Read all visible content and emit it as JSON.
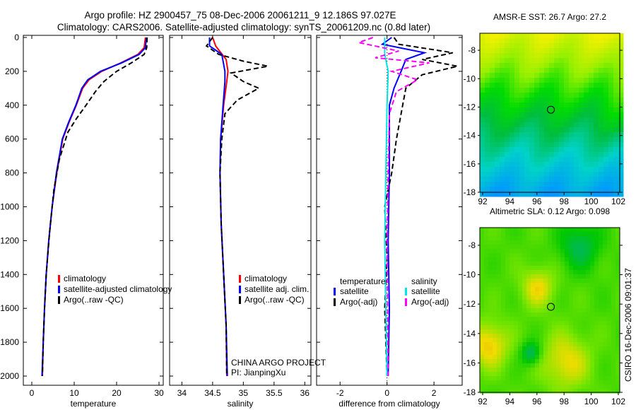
{
  "title_line1": "Argo profile: HZ 2900457_75 08-Dec-2006 20061211_9 12.186S 97.027E",
  "title_line2": "Climatology: CARS2006. Satellite-adjusted climatology: synTS_20061209.nc (0.8d later)",
  "side_label": "CSIRO 16-Dec-2006 09:01:37",
  "project_label": "CHINA ARGO PROJECT",
  "pi_label": "PI: JianpingXu",
  "colors": {
    "red": "#ff0000",
    "blue": "#0000ff",
    "black": "#000000",
    "cyan": "#00e5e5",
    "magenta": "#ff00ff"
  },
  "chart_data": [
    {
      "type": "line",
      "xlabel": "temperature",
      "ylabel": "",
      "xlim": [
        -2,
        31
      ],
      "ylim": [
        2050,
        0
      ],
      "xticks": [
        "0",
        "10",
        "20",
        "30"
      ],
      "xtickvals": [
        0,
        10,
        20,
        30
      ],
      "yticks": [
        "0",
        "200",
        "400",
        "600",
        "800",
        "1000",
        "1200",
        "1400",
        "1600",
        "1800",
        "2000"
      ],
      "legend": [
        "climatology",
        "satellite-adjusted climatology",
        "Argo(..raw -QC)"
      ],
      "series": [
        {
          "name": "climatology",
          "color": "red",
          "dash": false,
          "points": [
            [
              26.8,
              0
            ],
            [
              26.5,
              60
            ],
            [
              25,
              100
            ],
            [
              21,
              150
            ],
            [
              16.5,
              200
            ],
            [
              13.5,
              250
            ],
            [
              12,
              300
            ],
            [
              10.5,
              400
            ],
            [
              8.8,
              500
            ],
            [
              7.3,
              600
            ],
            [
              5.9,
              800
            ],
            [
              4.8,
              1000
            ],
            [
              4,
              1200
            ],
            [
              3.4,
              1400
            ],
            [
              3,
              1600
            ],
            [
              2.7,
              1800
            ],
            [
              2.5,
              2000
            ]
          ]
        },
        {
          "name": "satellite-adjusted climatology",
          "color": "blue",
          "dash": false,
          "points": [
            [
              27,
              0
            ],
            [
              26.8,
              60
            ],
            [
              25.3,
              100
            ],
            [
              21.2,
              150
            ],
            [
              16.2,
              200
            ],
            [
              13.2,
              250
            ],
            [
              11.8,
              300
            ],
            [
              10.4,
              400
            ],
            [
              8.7,
              500
            ],
            [
              7.2,
              600
            ],
            [
              5.8,
              800
            ],
            [
              4.8,
              1000
            ],
            [
              4,
              1200
            ],
            [
              3.4,
              1400
            ],
            [
              3,
              1600
            ],
            [
              2.7,
              1800
            ],
            [
              2.4,
              2000
            ]
          ]
        },
        {
          "name": "Argo(..raw -QC)",
          "color": "black",
          "dash": true,
          "points": [
            [
              27.2,
              0
            ],
            [
              27.1,
              60
            ],
            [
              26.5,
              100
            ],
            [
              23.5,
              150
            ],
            [
              20,
              200
            ],
            [
              17,
              260
            ],
            [
              15,
              320
            ],
            [
              12.8,
              400
            ],
            [
              10.5,
              480
            ],
            [
              8.5,
              560
            ],
            [
              6.5,
              720
            ],
            [
              5.2,
              900
            ],
            [
              4.2,
              1150
            ],
            [
              3.4,
              1400
            ],
            [
              3,
              1600
            ],
            [
              2.7,
              1800
            ],
            [
              2.5,
              2000
            ]
          ]
        }
      ]
    },
    {
      "type": "line",
      "xlabel": "salinity",
      "ylabel": "",
      "xlim": [
        33.8,
        36.1
      ],
      "ylim": [
        2050,
        0
      ],
      "xticks": [
        "34",
        "34.5",
        "35",
        "35.5",
        "36"
      ],
      "xtickvals": [
        34,
        34.5,
        35,
        35.5,
        36
      ],
      "legend": [
        "climatology",
        "satellite adj. clim.",
        "Argo(..raw -QC)"
      ],
      "series": [
        {
          "name": "climatology",
          "color": "red",
          "dash": false,
          "points": [
            [
              34.5,
              0
            ],
            [
              34.55,
              50
            ],
            [
              34.72,
              130
            ],
            [
              34.75,
              200
            ],
            [
              34.73,
              260
            ],
            [
              34.68,
              400
            ],
            [
              34.63,
              600
            ],
            [
              34.62,
              800
            ],
            [
              34.64,
              1100
            ],
            [
              34.68,
              1400
            ],
            [
              34.72,
              1700
            ],
            [
              34.73,
              2000
            ]
          ]
        },
        {
          "name": "satellite adj. clim.",
          "color": "blue",
          "dash": false,
          "points": [
            [
              34.45,
              0
            ],
            [
              34.45,
              50
            ],
            [
              34.65,
              100
            ],
            [
              34.7,
              200
            ],
            [
              34.7,
              260
            ],
            [
              34.67,
              400
            ],
            [
              34.63,
              600
            ],
            [
              34.62,
              800
            ],
            [
              34.64,
              1100
            ],
            [
              34.68,
              1400
            ],
            [
              34.72,
              1700
            ],
            [
              34.74,
              2000
            ]
          ]
        },
        {
          "name": "Argo(..raw -QC)",
          "color": "black",
          "dash": true,
          "points": [
            [
              34.5,
              0
            ],
            [
              34.4,
              50
            ],
            [
              34.6,
              100
            ],
            [
              35.0,
              140
            ],
            [
              35.4,
              170
            ],
            [
              34.8,
              210
            ],
            [
              35.0,
              260
            ],
            [
              35.25,
              300
            ],
            [
              34.9,
              370
            ],
            [
              34.7,
              450
            ],
            [
              34.65,
              600
            ],
            [
              34.62,
              800
            ],
            [
              34.64,
              1100
            ],
            [
              34.68,
              1400
            ],
            [
              34.72,
              1700
            ],
            [
              34.73,
              2000
            ]
          ]
        }
      ]
    },
    {
      "type": "line",
      "xlabel": "difference from climatology",
      "ylabel": "",
      "xlim": [
        -3,
        3.2
      ],
      "ylim": [
        2050,
        0
      ],
      "xticks": [
        "-2",
        "0",
        "2"
      ],
      "xtickvals": [
        -2,
        0,
        2
      ],
      "legend_temp_title": "temperature",
      "legend_sal_title": "salinity",
      "legend": [
        "satellite",
        "Argo(-adj)",
        "satellite",
        "Argo(-adj)"
      ],
      "series": [
        {
          "name": "temperature satellite",
          "color": "blue",
          "dash": false,
          "points": [
            [
              0.2,
              0
            ],
            [
              -0.2,
              40
            ],
            [
              1.6,
              90
            ],
            [
              0.8,
              130
            ],
            [
              0.6,
              200
            ],
            [
              0.3,
              300
            ],
            [
              0.1,
              400
            ],
            [
              0.1,
              800
            ],
            [
              0.05,
              1200
            ],
            [
              0.1,
              1600
            ],
            [
              0.05,
              2000
            ]
          ]
        },
        {
          "name": "temperature Argo(-adj)",
          "color": "black",
          "dash": true,
          "points": [
            [
              0.3,
              0
            ],
            [
              0.5,
              40
            ],
            [
              2.8,
              90
            ],
            [
              1.5,
              130
            ],
            [
              3.0,
              170
            ],
            [
              1.5,
              220
            ],
            [
              0.8,
              300
            ],
            [
              0.6,
              450
            ],
            [
              0.4,
              600
            ],
            [
              0.2,
              800
            ],
            [
              -0.1,
              1000
            ],
            [
              0,
              1300
            ],
            [
              -0.1,
              1600
            ],
            [
              0,
              2000
            ]
          ]
        },
        {
          "name": "salinity satellite",
          "color": "cyan",
          "dash": false,
          "points": [
            [
              -0.1,
              0
            ],
            [
              -0.1,
              100
            ],
            [
              0.05,
              200
            ],
            [
              0,
              400
            ],
            [
              -0.05,
              800
            ],
            [
              -0.1,
              1200
            ],
            [
              -0.05,
              1600
            ],
            [
              0,
              2000
            ]
          ]
        },
        {
          "name": "salinity Argo(-adj)",
          "color": "magenta",
          "dash": true,
          "points": [
            [
              -0.6,
              0
            ],
            [
              -1.2,
              30
            ],
            [
              0.5,
              80
            ],
            [
              -0.5,
              120
            ],
            [
              1.8,
              150
            ],
            [
              0.2,
              200
            ],
            [
              1.3,
              250
            ],
            [
              0.4,
              320
            ],
            [
              0.1,
              450
            ],
            [
              0.05,
              800
            ],
            [
              0,
              1200
            ],
            [
              0.05,
              2000
            ]
          ]
        }
      ]
    },
    {
      "type": "heatmap",
      "title": "AMSR-E SST: 26.7 Argo: 27.2",
      "xlim": [
        92,
        102
      ],
      "ylim": [
        -18,
        -6.8
      ],
      "xticks": [
        "92",
        "94",
        "96",
        "98",
        "100",
        "102"
      ],
      "yticks": [
        "-8",
        "-10",
        "-12",
        "-14",
        "-16",
        "-18"
      ],
      "marker": [
        97.027,
        -12.186
      ]
    },
    {
      "type": "heatmap",
      "title": "Altimetric SLA: 0.12 Argo: 0.098",
      "xlim": [
        92,
        102
      ],
      "ylim": [
        -18,
        -6.8
      ],
      "xticks": [
        "92",
        "94",
        "96",
        "98",
        "100",
        "102"
      ],
      "yticks": [
        "-8",
        "-10",
        "-12",
        "-14",
        "-16",
        "-18"
      ],
      "marker": [
        97.027,
        -12.186
      ]
    }
  ]
}
